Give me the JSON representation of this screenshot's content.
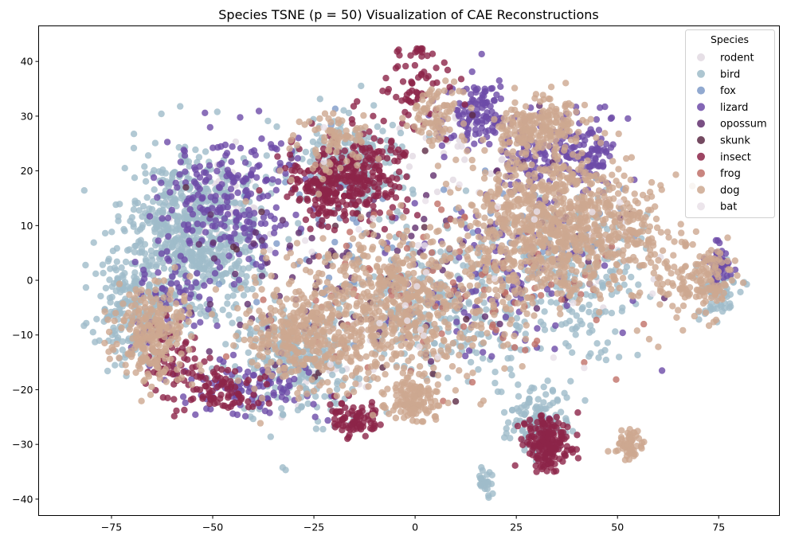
{
  "chart_data": {
    "type": "scatter",
    "title": "Species TSNE (p = 50) Visualization of CAE Reconstructions",
    "xlabel": "",
    "ylabel": "",
    "xlim": [
      -93,
      90
    ],
    "ylim": [
      -43,
      46.5
    ],
    "xticks": [
      -75,
      -50,
      -25,
      0,
      25,
      50,
      75
    ],
    "yticks": [
      -40,
      -30,
      -20,
      -10,
      0,
      10,
      20,
      30,
      40
    ],
    "grid": false,
    "legend": {
      "title": "Species",
      "position": "top-right"
    },
    "series": [
      {
        "name": "rodent",
        "color": "#e2d9e2",
        "clusters": [
          [
            -48,
            12,
            10,
            9,
            60
          ],
          [
            10,
            25,
            12,
            8,
            40
          ],
          [
            45,
            5,
            10,
            8,
            40
          ],
          [
            -20,
            -15,
            12,
            8,
            40
          ]
        ]
      },
      {
        "name": "bird",
        "color": "#9fbcc9",
        "clusters": [
          [
            -55,
            8,
            14,
            12,
            700
          ],
          [
            -15,
            22,
            10,
            8,
            200
          ],
          [
            -70,
            -5,
            8,
            8,
            200
          ],
          [
            5,
            -5,
            20,
            12,
            300
          ],
          [
            -30,
            -15,
            12,
            8,
            250
          ],
          [
            17,
            -37,
            1.5,
            2,
            25
          ],
          [
            30,
            -25,
            6,
            5,
            120
          ],
          [
            40,
            0,
            15,
            12,
            200
          ],
          [
            75,
            -3,
            5,
            4,
            60
          ]
        ]
      },
      {
        "name": "fox",
        "color": "#7e9ac8",
        "clusters": [
          [
            -20,
            5,
            20,
            15,
            60
          ],
          [
            30,
            10,
            20,
            10,
            40
          ]
        ]
      },
      {
        "name": "lizard",
        "color": "#6d4ba8",
        "clusters": [
          [
            -45,
            15,
            15,
            10,
            220
          ],
          [
            15,
            30,
            8,
            5,
            120
          ],
          [
            42,
            24,
            6,
            5,
            120
          ],
          [
            28,
            22,
            6,
            5,
            80
          ],
          [
            -40,
            -20,
            12,
            5,
            100
          ],
          [
            75,
            3,
            3,
            3,
            50
          ],
          [
            -60,
            -5,
            10,
            10,
            80
          ],
          [
            20,
            0,
            20,
            15,
            120
          ]
        ]
      },
      {
        "name": "opossum",
        "color": "#62306e",
        "clusters": [
          [
            15,
            5,
            30,
            15,
            50
          ],
          [
            -30,
            0,
            20,
            15,
            50
          ]
        ]
      },
      {
        "name": "skunk",
        "color": "#5c2a45",
        "clusters": [
          [
            0,
            0,
            40,
            20,
            25
          ]
        ]
      },
      {
        "name": "insect",
        "color": "#8c2448",
        "clusters": [
          [
            -20,
            18,
            10,
            6,
            250
          ],
          [
            33,
            -30,
            5,
            4,
            180
          ],
          [
            -15,
            -25,
            5,
            3,
            80
          ],
          [
            -48,
            -20,
            8,
            4,
            80
          ],
          [
            -10,
            20,
            8,
            8,
            100
          ],
          [
            0,
            35,
            8,
            6,
            60
          ],
          [
            -60,
            -15,
            6,
            6,
            60
          ],
          [
            1,
            42,
            2,
            1,
            10
          ]
        ]
      },
      {
        "name": "frog",
        "color": "#c07068",
        "clusters": [
          [
            -5,
            0,
            30,
            15,
            60
          ],
          [
            30,
            -5,
            20,
            15,
            40
          ]
        ]
      },
      {
        "name": "dog",
        "color": "#cda890",
        "clusters": [
          [
            30,
            10,
            15,
            12,
            700
          ],
          [
            50,
            10,
            12,
            10,
            250
          ],
          [
            -5,
            -5,
            20,
            12,
            600
          ],
          [
            -65,
            -10,
            8,
            8,
            250
          ],
          [
            -30,
            -10,
            12,
            8,
            300
          ],
          [
            30,
            28,
            8,
            4,
            200
          ],
          [
            53,
            -30,
            3,
            3,
            60
          ],
          [
            5,
            30,
            5,
            5,
            80
          ],
          [
            -20,
            25,
            8,
            5,
            80
          ],
          [
            0,
            -22,
            5,
            3,
            120
          ],
          [
            70,
            0,
            8,
            6,
            150
          ]
        ]
      },
      {
        "name": "bat",
        "color": "#e9e0e8",
        "clusters": [
          [
            0,
            0,
            40,
            20,
            30
          ]
        ]
      }
    ]
  }
}
